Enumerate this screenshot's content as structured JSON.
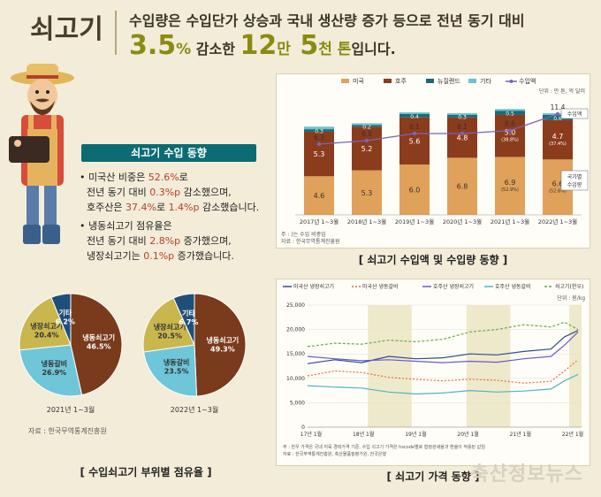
{
  "header": {
    "title": "쇠고기",
    "line1": "수입량은 수입단가 상승과 국내 생산량 증가 등으로 전년 동기 대비",
    "line2_num1": "3.5",
    "line2_pct": "%",
    "line2_txt1": " 감소한 ",
    "line2_num2": "12",
    "line2_unit2": "만",
    "line2_num3": " 5",
    "line2_unit3": "천 톤",
    "line2_txt2": "입니다."
  },
  "trend_box": {
    "title": "쇠고기 수입 동향",
    "b1_pre": "• 미국산 비중은 ",
    "b1_v1": "52.6%",
    "b1_mid": "로",
    "b1_line2_pre": "전년 동기 대비 ",
    "b1_v2": "0.3%p",
    "b1_line2_post": " 감소했으며,",
    "b1_line3_pre": "호주산은 ",
    "b1_v3": "37.4%",
    "b1_line3_mid": "로 ",
    "b1_v4": "1.4%p",
    "b1_line3_post": " 감소했습니다.",
    "b2_pre": "• 냉동쇠고기 점유율은",
    "b2_line2_pre": "전년 동기 대비 ",
    "b2_v1": "2.8%p",
    "b2_line2_post": " 증가했으며,",
    "b2_line3_pre": "냉장쇠고기는 ",
    "b2_v2": "0.1%p",
    "b2_line3_post": " 증가했습니다."
  },
  "pies": {
    "source": "자료 : 한국무역통계진흥원",
    "caption": "[ 수입쇠고기 부위별 점유율 ]",
    "colors": [
      "#7a3a1c",
      "#6fc6d9",
      "#c9b74e",
      "#1f4f78"
    ]
  },
  "bar_chart": {
    "caption": "[ 쇠고기 수입액 및 수입량 동향 ]",
    "unit": "단위 : 만 톤, 억 달러",
    "right_label1": "수입액",
    "right_label2a": "국가별",
    "right_label2b": "수입량",
    "note1": "주 :  )는 수입 비중임",
    "note2": "자료 : 한국무역통계진흥원",
    "colors": {
      "us": "#e0a15b",
      "au": "#8b3c1c",
      "nz": "#1b6a75",
      "etc": "#68c3d3",
      "value": "#7b63b6"
    }
  },
  "line_chart": {
    "caption": "[ 쇠고기 가격 동향 ]",
    "unit": "단위 : 원/kg",
    "note1": "주 : 한우 가격은 국내 지육 경락가격 기준, 수입 쇠고기 가격은 hscode별로 협정관세율과 환율이 적용된 값임",
    "note2": "자료 : 한국무역통계진흥원, 축산물품질평가원, 한국은행",
    "colors": {
      "us_chilled": "#2e4d8c",
      "us_frozen": "#e66a3a",
      "au_chilled": "#6a5acd",
      "au_frozen": "#4fb3c4",
      "hanwoo": "#6aa84f"
    }
  },
  "watermark": "축산정보뉴스",
  "chart_data": [
    {
      "type": "bar",
      "title": "쇠고기 수입액 및 수입량 동향",
      "unit": "단위 : 만 톤, 억 달러",
      "categories": [
        "2017년 1~3월",
        "2018년 1~3월",
        "2019년 1~3월",
        "2020년 1~3월",
        "2021년 1~3월",
        "2022년 1~3월"
      ],
      "series": [
        {
          "name": "미국",
          "values": [
            4.6,
            5.3,
            6.0,
            6.8,
            6.9,
            6.6
          ],
          "labels": [
            "4.6",
            "5.3",
            "6.0",
            "6.8",
            "6.9\n(52.9%)",
            "6.6\n(52.6%)"
          ]
        },
        {
          "name": "호주",
          "values": [
            5.3,
            5.2,
            5.6,
            4.8,
            5.0,
            4.7
          ],
          "labels": [
            "5.3",
            "5.2",
            "5.6",
            "4.8",
            "5.0\n(38.8%)",
            "4.7\n(37.4%)"
          ]
        },
        {
          "name": "뉴질랜드",
          "values": [
            0.3,
            0.2,
            0.4,
            0.3,
            0.5,
            0.6
          ],
          "labels": [
            "0.3",
            "0.2",
            "0.4",
            "0.3",
            "0.5",
            "0.6"
          ]
        },
        {
          "name": "기타",
          "values": [
            0.3,
            0.2,
            0.2,
            0.2,
            0.2,
            0.2
          ]
        }
      ],
      "line_series": {
        "name": "수입액",
        "values": [
          6.3,
          6.9,
          8.1,
          8.1,
          8.6,
          11.4
        ]
      },
      "legend": [
        "미국",
        "호주",
        "뉴질랜드",
        "기타",
        "수입액"
      ],
      "source": "자료 : 한국무역통계진흥원"
    },
    {
      "type": "line",
      "title": "쇠고기 가격 동향",
      "unit": "단위 : 원/kg",
      "x_ticks": [
        "17년 1월",
        "18년 1월",
        "19년 1월",
        "20년 1월",
        "21년 1월",
        "22년 1월"
      ],
      "y_ticks": [
        "0",
        "5,000",
        "10,000",
        "15,000",
        "20,000",
        "25,000"
      ],
      "ylim": [
        0,
        25000
      ],
      "series": [
        {
          "name": "미국산 냉장쇠고기",
          "x_fraction": [
            0,
            0.1,
            0.2,
            0.3,
            0.4,
            0.5,
            0.6,
            0.7,
            0.8,
            0.9,
            0.95,
            1.0
          ],
          "values": [
            13000,
            13800,
            13200,
            14500,
            14000,
            14200,
            15000,
            14800,
            15500,
            16000,
            18500,
            19800
          ]
        },
        {
          "name": "미국산 냉동갈비",
          "x_fraction": [
            0,
            0.1,
            0.2,
            0.3,
            0.4,
            0.5,
            0.6,
            0.7,
            0.8,
            0.9,
            0.95,
            1.0
          ],
          "values": [
            10500,
            11500,
            11200,
            10200,
            9800,
            9500,
            9800,
            9600,
            9000,
            9400,
            11500,
            13800
          ]
        },
        {
          "name": "호주산 냉장쇠고기",
          "x_fraction": [
            0,
            0.1,
            0.2,
            0.3,
            0.4,
            0.5,
            0.6,
            0.7,
            0.8,
            0.9,
            0.95,
            1.0
          ],
          "values": [
            14500,
            14000,
            13600,
            13800,
            13500,
            13200,
            13500,
            13300,
            14000,
            14500,
            16800,
            19500
          ]
        },
        {
          "name": "호주산 냉동갈비",
          "x_fraction": [
            0,
            0.1,
            0.2,
            0.3,
            0.4,
            0.5,
            0.6,
            0.7,
            0.8,
            0.9,
            0.95,
            1.0
          ],
          "values": [
            8500,
            8200,
            8000,
            7200,
            6800,
            7000,
            7500,
            7200,
            7400,
            7800,
            9500,
            10800
          ]
        },
        {
          "name": "쇠고기(한우)",
          "x_fraction": [
            0,
            0.1,
            0.2,
            0.3,
            0.4,
            0.5,
            0.6,
            0.7,
            0.8,
            0.9,
            0.95,
            1.0
          ],
          "values": [
            16500,
            17200,
            17000,
            17800,
            17500,
            18000,
            19500,
            20000,
            21000,
            20500,
            21500,
            20000
          ]
        }
      ],
      "source": "자료 : 한국무역통계진흥원, 축산물품질평가원, 한국은행"
    },
    {
      "type": "pie",
      "title": "2021년 1~3월",
      "labels": [
        "냉동쇠고기",
        "냉동갈비",
        "냉장쇠고기",
        "기타"
      ],
      "values": [
        46.5,
        26.9,
        20.4,
        6.2
      ],
      "value_labels": [
        "46.5%",
        "26.9%",
        "20.4%",
        "6.2%"
      ]
    },
    {
      "type": "pie",
      "title": "2022년 1~3월",
      "labels": [
        "냉동쇠고기",
        "냉동갈비",
        "냉장쇠고기",
        "기타"
      ],
      "values": [
        49.3,
        23.5,
        20.5,
        6.7
      ],
      "value_labels": [
        "49.3%",
        "23.5%",
        "20.5%",
        "6.7%"
      ]
    }
  ]
}
